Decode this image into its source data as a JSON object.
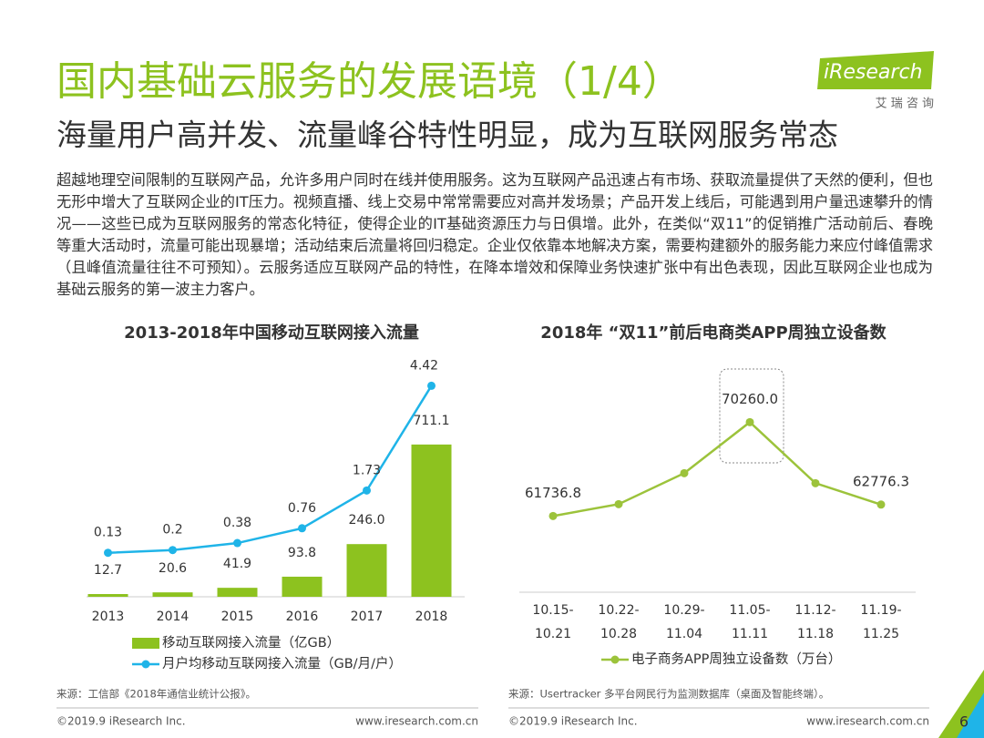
{
  "header": {
    "title": "国内基础云服务的发展语境（1/4）",
    "subtitle": "海量用户高并发、流量峰谷特性明显，成为互联网服务常态",
    "logo": "iResearch",
    "logo_cn": "艾 瑞 咨 询"
  },
  "body": "超越地理空间限制的互联网产品，允许多用户同时在线并使用服务。这为互联网产品迅速占有市场、获取流量提供了天然的便利，但也无形中增大了互联网企业的IT压力。视频直播、线上交易中常常需要应对高并发场景；产品开发上线后，可能遇到用户量迅速攀升的情况——这些已成为互联网服务的常态化特征，使得企业的IT基础资源压力与日俱增。此外，在类似“双11”的促销推广活动前后、春晚等重大活动时，流量可能出现暴增；活动结束后流量将回归稳定。企业仅依靠本地解决方案，需要构建额外的服务能力来应付峰值需求（且峰值流量往往不可预知）。云服务适应互联网产品的特性，在降本增效和保障业务快速扩张中有出色表现，因此互联网企业也成为基础云服务的第一波主力客户。",
  "chart_data": [
    {
      "type": "bar",
      "title": "2013-2018年中国移动互联网接入流量",
      "categories": [
        "2013",
        "2014",
        "2015",
        "2016",
        "2017",
        "2018"
      ],
      "ylim": [
        0,
        1000
      ],
      "y2lim": [
        -1,
        4.5
      ],
      "series": [
        {
          "name": "移动互联网接入流量（亿GB）",
          "type": "bar",
          "color": "#8dc21f",
          "values": [
            12.7,
            20.6,
            41.9,
            93.8,
            246.0,
            711.1
          ],
          "value_labels": [
            "12.7",
            "20.6",
            "41.9",
            "93.8",
            "246.0",
            "711.1"
          ]
        },
        {
          "name": "月户均移动互联网接入流量（GB/月/户）",
          "type": "line",
          "axis": "y2",
          "color": "#1fb4e8",
          "values": [
            0.13,
            0.2,
            0.38,
            0.76,
            1.73,
            4.42
          ]
        }
      ],
      "source": "来源：工信部《2018年通信业统计公报》。"
    },
    {
      "type": "line",
      "title": "2018年 “双11”前后电商类APP周独立设备数",
      "categories": [
        "10.15-10.21",
        "10.22-10.28",
        "10.29-11.04",
        "11.05-11.11",
        "11.12-11.18",
        "11.19-11.25"
      ],
      "ylim": [
        54400,
        75500
      ],
      "series": [
        {
          "name": "电子商务APP周独立设备数（万台）",
          "type": "line",
          "color": "#9cc33b",
          "values": [
            61736.8,
            62812,
            65626,
            70260.0,
            64716,
            62776.3
          ],
          "value_labels": [
            "61736.8",
            null,
            null,
            "70260.0",
            null,
            "62776.3"
          ]
        }
      ],
      "source": "来源：Usertracker 多平台网民行为监测数据库（桌面及智能终端）。"
    }
  ],
  "footer": [
    {
      "copyright": "©2019.9 iResearch Inc.",
      "site": "www.iresearch.com.cn"
    },
    {
      "copyright": "©2019.9 iResearch Inc.",
      "site": "www.iresearch.com.cn"
    }
  ],
  "page_number": "6"
}
